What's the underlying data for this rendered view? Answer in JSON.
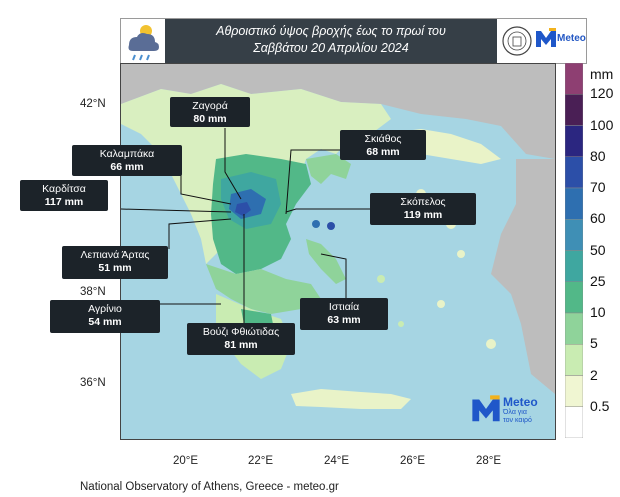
{
  "header": {
    "title_line1": "Αθροιστικό ύψος βροχής έως το πρωί του",
    "title_line2": "Σαββάτου 20 Απριλίου 2024",
    "logo_text": "Meteo"
  },
  "map": {
    "lat_labels": [
      "42°N",
      "38°N",
      "36°N"
    ],
    "lon_labels": [
      "20°E",
      "22°E",
      "24°E",
      "26°E",
      "28°E"
    ],
    "brand_name": "Meteo",
    "brand_tagline_1": "Όλα για",
    "brand_tagline_2": "τον καιρό"
  },
  "callouts": [
    {
      "name": "Ζαγορά",
      "value": "80 mm"
    },
    {
      "name": "Σκιάθος",
      "value": "68 mm"
    },
    {
      "name": "Καλαμπάκα",
      "value": "66 mm"
    },
    {
      "name": "Καρδίτσα",
      "value": "117 mm"
    },
    {
      "name": "Σκόπελος",
      "value": "119 mm"
    },
    {
      "name": "Λεπιανά Άρτας",
      "value": "51 mm"
    },
    {
      "name": "Αγρίνιο",
      "value": "54 mm"
    },
    {
      "name": "Ιστιαία",
      "value": "63 mm"
    },
    {
      "name": "Βούζι Φθιώτιδας",
      "value": "81 mm"
    }
  ],
  "colorbar": {
    "unit": "mm",
    "labels": [
      "120",
      "100",
      "80",
      "70",
      "60",
      "50",
      "25",
      "10",
      "5",
      "2",
      "0.5"
    ],
    "colors": [
      "#8e3f72",
      "#4a1f55",
      "#2b2680",
      "#2c4fa8",
      "#2e6fb0",
      "#3f8fb5",
      "#3fa7a0",
      "#52b888",
      "#8fd39a",
      "#c9ecb2",
      "#f0f6d2",
      "#ffffff"
    ]
  },
  "colors": {
    "sea": "#a6d5e3",
    "land_dry": "#e9f3c8",
    "land_gray": "#bdbdbd"
  },
  "footer": "National Observatory of Athens, Greece - meteo.gr"
}
